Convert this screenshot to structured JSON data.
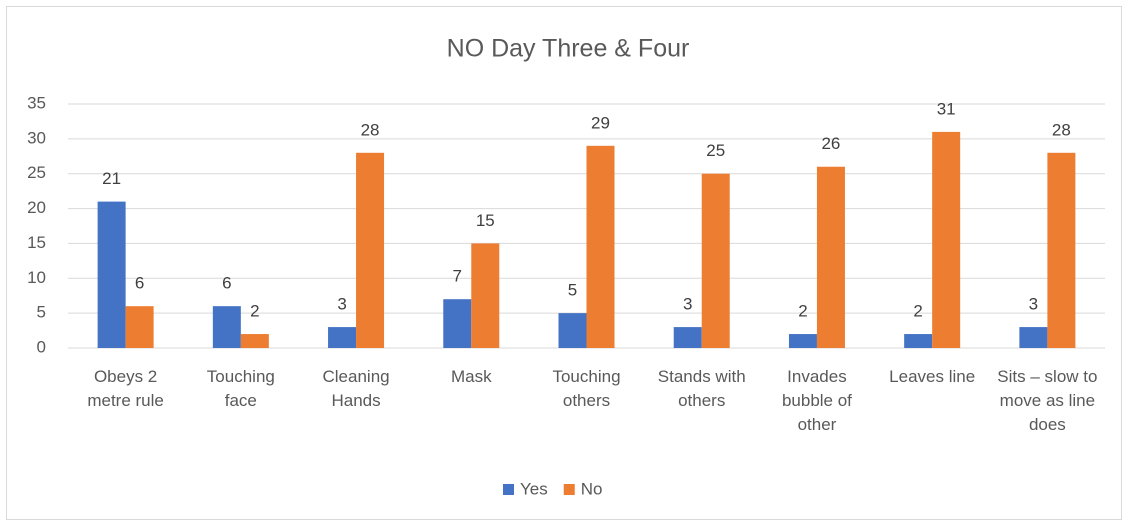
{
  "chart_data": {
    "type": "bar",
    "title": "NO Day Three & Four",
    "categories": [
      "Obeys 2 metre rule",
      "Touching face",
      "Cleaning Hands",
      "Mask",
      "Touching others",
      "Stands with others",
      "Invades bubble of other",
      "Leaves line",
      "Sits – slow to move as line does"
    ],
    "series": [
      {
        "name": "Yes",
        "color": "#4472c4",
        "values": [
          21,
          6,
          3,
          7,
          5,
          3,
          2,
          2,
          3
        ]
      },
      {
        "name": "No",
        "color": "#ed7d31",
        "values": [
          6,
          2,
          28,
          15,
          29,
          25,
          26,
          31,
          28
        ]
      }
    ],
    "ylim": [
      0,
      35
    ],
    "yticks": [
      0,
      5,
      10,
      15,
      20,
      25,
      30,
      35
    ],
    "grid": true,
    "legend": "bottom"
  }
}
